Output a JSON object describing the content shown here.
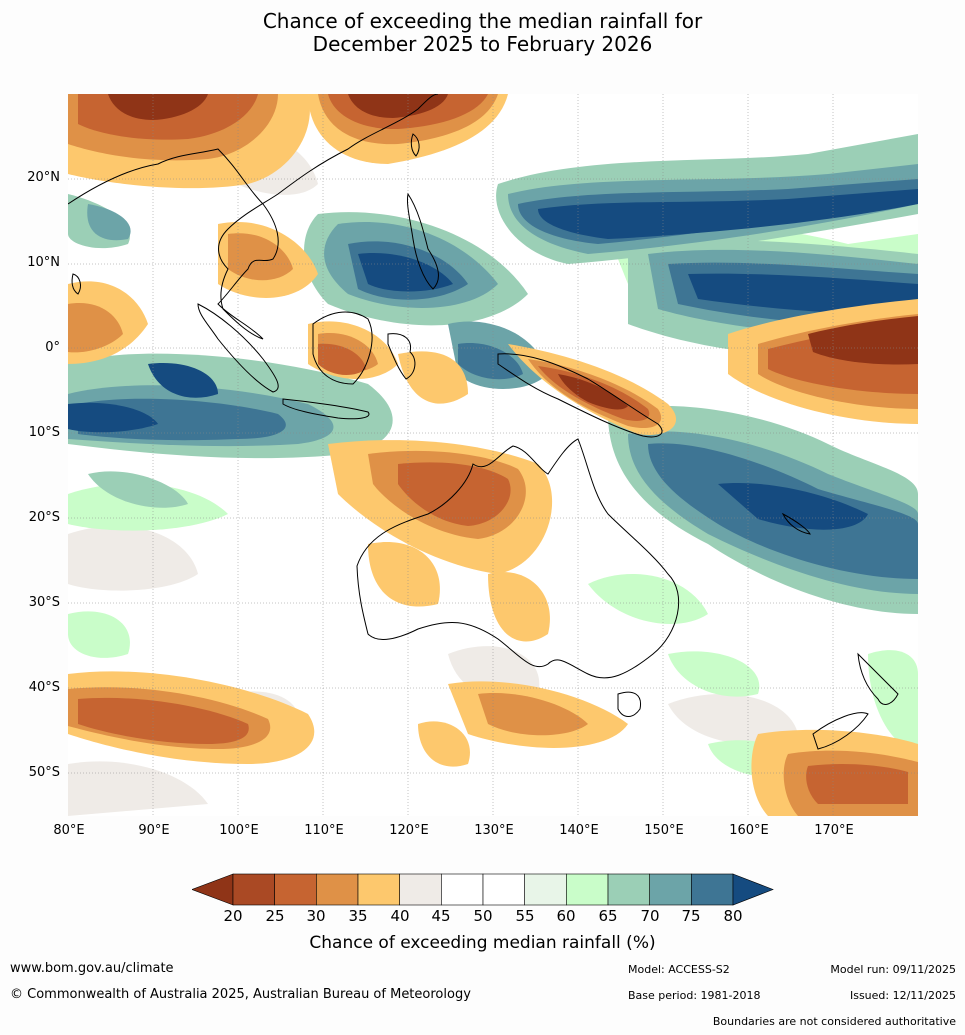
{
  "title": {
    "line1": "Chance of exceeding the median rainfall for",
    "line2": "December 2025 to February 2026"
  },
  "map": {
    "lon_range": [
      80,
      180
    ],
    "lat_range": [
      -55,
      30
    ],
    "lat_labels": [
      "20°N",
      "10°N",
      "0°",
      "10°S",
      "20°S",
      "30°S",
      "40°S",
      "50°S"
    ],
    "lon_labels": [
      "80°E",
      "90°E",
      "100°E",
      "110°E",
      "120°E",
      "130°E",
      "140°E",
      "150°E",
      "160°E",
      "170°E"
    ]
  },
  "legend": {
    "label": "Chance of exceeding median rainfall (%)",
    "ticks": [
      "20",
      "25",
      "30",
      "35",
      "40",
      "45",
      "50",
      "55",
      "60",
      "65",
      "70",
      "75",
      "80"
    ],
    "colors": {
      "below20": "#8f3417",
      "b20_25": "#aa4924",
      "b25_30": "#c66431",
      "b30_35": "#df9147",
      "b35_40": "#fdc86d",
      "b40_45": "#efebe7",
      "b45_55": "#ffffff",
      "b55_60": "#e8f5e8",
      "b60_65": "#c9fdc9",
      "b65_70": "#9bcfb6",
      "b70_75": "#6ca4a8",
      "b75_80": "#3e7594",
      "above80": "#154b80"
    }
  },
  "footer": {
    "url": "www.bom.gov.au/climate",
    "copyright": "© Commonwealth of Australia 2025, Australian Bureau of Meteorology",
    "model": "Model: ACCESS-S2",
    "base_period": "Base period: 1981-2018",
    "model_run": "Model run: 09/11/2025",
    "issued": "Issued: 12/11/2025",
    "boundaries": "Boundaries are not considered authoritative"
  }
}
